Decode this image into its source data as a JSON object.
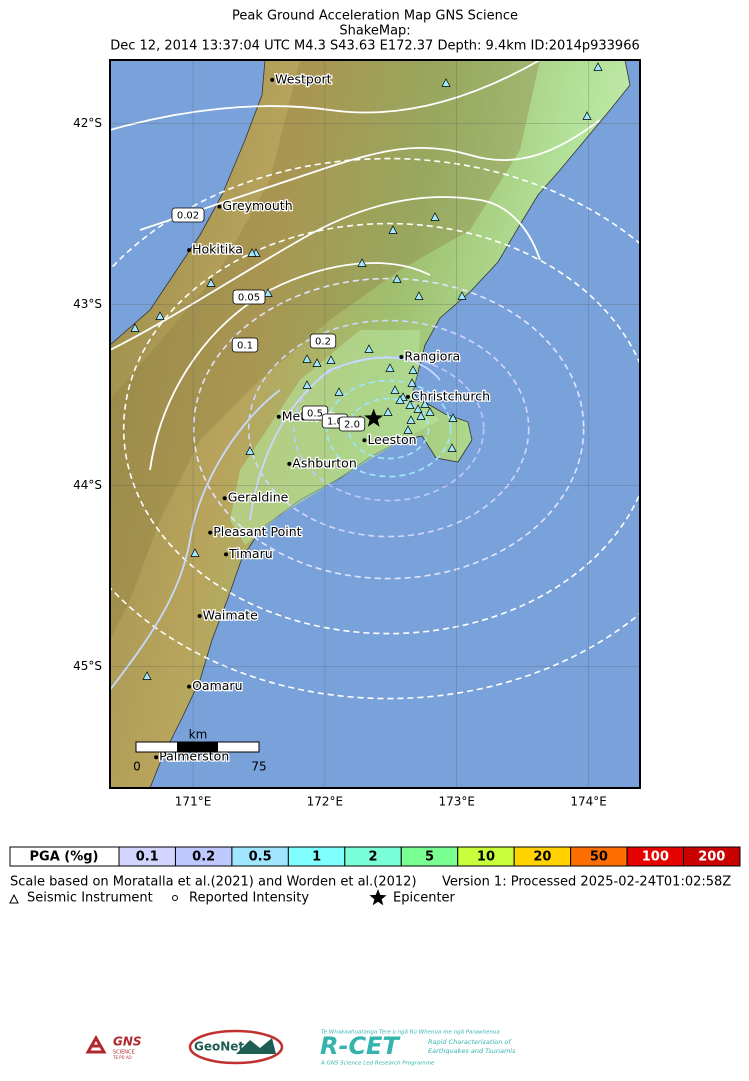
{
  "header": {
    "title": "Peak Ground Acceleration Map GNS Science",
    "subtitle": "ShakeMap:",
    "event": "Dec 12, 2014 13:37:04 UTC M4.3 S43.63 E172.37 Depth: 9.4km ID:2014p933966"
  },
  "map": {
    "xlim": [
      170.37,
      174.39
    ],
    "ylim": [
      -45.67,
      -41.65
    ],
    "xticks": [
      {
        "value": 171,
        "label": "171°E"
      },
      {
        "value": 172,
        "label": "172°E"
      },
      {
        "value": 173,
        "label": "173°E"
      },
      {
        "value": 174,
        "label": "174°E"
      }
    ],
    "yticks": [
      {
        "value": -42,
        "label": "42°S"
      },
      {
        "value": -43,
        "label": "43°S"
      },
      {
        "value": -44,
        "label": "44°S"
      },
      {
        "value": -45,
        "label": "45°S"
      }
    ],
    "places": [
      {
        "label": "Westport",
        "lon": 171.6,
        "lat": -41.76
      },
      {
        "label": "Greymouth",
        "lon": 171.2,
        "lat": -42.46
      },
      {
        "label": "Hokitika",
        "lon": 170.97,
        "lat": -42.7
      },
      {
        "label": "Rangiora",
        "lon": 172.58,
        "lat": -43.29
      },
      {
        "label": "Christchurch",
        "lon": 172.63,
        "lat": -43.51
      },
      {
        "label": "Methven",
        "lon": 171.65,
        "lat": -43.62
      },
      {
        "label": "Leeston",
        "lon": 172.3,
        "lat": -43.75
      },
      {
        "label": "Ashburton",
        "lon": 171.73,
        "lat": -43.88
      },
      {
        "label": "Geraldine",
        "lon": 171.24,
        "lat": -44.07
      },
      {
        "label": "Pleasant Point",
        "lon": 171.13,
        "lat": -44.26
      },
      {
        "label": "Timaru",
        "lon": 171.25,
        "lat": -44.38
      },
      {
        "label": "Waimate",
        "lon": 171.05,
        "lat": -44.72
      },
      {
        "label": "Oamaru",
        "lon": 170.97,
        "lat": -45.11
      },
      {
        "label": "Palmerston",
        "lon": 170.72,
        "lat": -45.5
      }
    ],
    "epicenter": {
      "lon": 172.37,
      "lat": -43.63
    },
    "contour_labels": [
      "0.02",
      "0.05",
      "0.1",
      "0.2",
      "0.5",
      "1.0",
      "2.0"
    ],
    "scale_bar": {
      "unit": "km",
      "start": "0",
      "end": "75"
    }
  },
  "legend": {
    "label": "PGA (%g)",
    "bins": [
      {
        "label": "0.1",
        "color": "#d2d6ff"
      },
      {
        "label": "0.2",
        "color": "#bfc8ff"
      },
      {
        "label": "0.5",
        "color": "#a0e6ff"
      },
      {
        "label": "1",
        "color": "#80ffff"
      },
      {
        "label": "2",
        "color": "#7affd8"
      },
      {
        "label": "5",
        "color": "#7aff93"
      },
      {
        "label": "10",
        "color": "#c8ff3c"
      },
      {
        "label": "20",
        "color": "#ffd200"
      },
      {
        "label": "50",
        "color": "#ff6e00"
      },
      {
        "label": "100",
        "color": "#e60000"
      },
      {
        "label": "200",
        "color": "#c80000"
      }
    ]
  },
  "footer": {
    "scale_note": "Scale based on Moratalla et al.(2021) and Worden et al.(2012)",
    "version": "Version 1: Processed 2025-02-24T01:02:58Z",
    "symbols": {
      "instrument": "Seismic Instrument",
      "intensity": "Reported Intensity",
      "epicenter": "Epicenter"
    }
  },
  "logos": {
    "gns": "GNS",
    "gns_sub": "SCIENCE",
    "gns_maori": "TE PŪ AO",
    "geonet": "GeoNet",
    "rcet": "R-CET",
    "rcet_maori": "Te Whakaahuatanga Tere o ngā Rū Whenua me ngā Parawhenua",
    "rcet_line1": "Rapid Characterisation of",
    "rcet_line2": "Earthquakes and Tsunamis",
    "rcet_programme": "A GNS Science Led Research Programme"
  }
}
